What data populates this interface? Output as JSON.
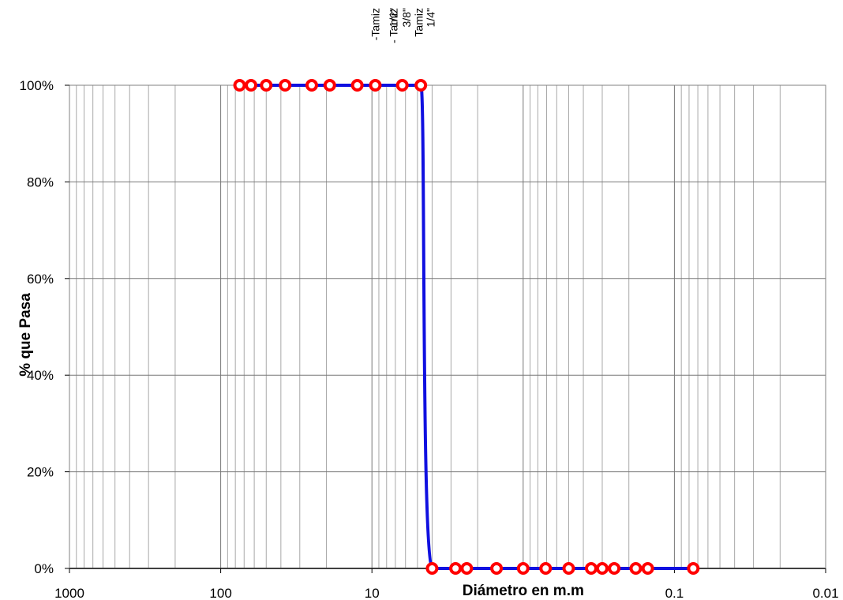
{
  "chart_data": {
    "type": "line",
    "title": "",
    "xlabel": "Diámetro en m.m",
    "ylabel": "% que Pasa",
    "x_scale": "log",
    "x_reversed": true,
    "xlim": [
      1000,
      0.01
    ],
    "ylim": [
      0,
      100
    ],
    "grid": true,
    "x_ticks": [
      1000,
      100,
      10,
      1,
      0.1,
      0.01
    ],
    "x_tick_labels": [
      "1000",
      "100",
      "10",
      "",
      "0.1",
      "0.01"
    ],
    "y_ticks": [
      0,
      20,
      40,
      60,
      80,
      100
    ],
    "y_tick_labels": [
      "0%",
      "20%",
      "40%",
      "60%",
      "80%",
      "100%"
    ],
    "series": [
      {
        "line_color": "#1010e0",
        "marker_color": "#ff0000",
        "marker_fill": "#ffffff",
        "x": [
          75,
          63,
          50,
          37.5,
          25,
          19,
          12.5,
          9.5,
          6.3,
          4.75,
          4.0,
          2.8,
          2.36,
          1.5,
          1.0,
          0.71,
          0.5,
          0.355,
          0.3,
          0.25,
          0.18,
          0.15,
          0.075
        ],
        "y": [
          100,
          100,
          100,
          100,
          100,
          100,
          100,
          100,
          100,
          100,
          0,
          0,
          0,
          0,
          0,
          0,
          0,
          0,
          0,
          0,
          0,
          0,
          0
        ]
      }
    ],
    "annotations": [
      {
        "text": "-Tamiz",
        "x": 9.5
      },
      {
        "text": "- Tamiz",
        "x": 7.2
      },
      {
        "text": "1/2\"",
        "x": 7.2
      },
      {
        "text": "3/8\"",
        "x": 5.9
      },
      {
        "text": "Tamiz",
        "x": 4.9
      },
      {
        "text": "1/4\"",
        "x": 4.1
      }
    ]
  }
}
